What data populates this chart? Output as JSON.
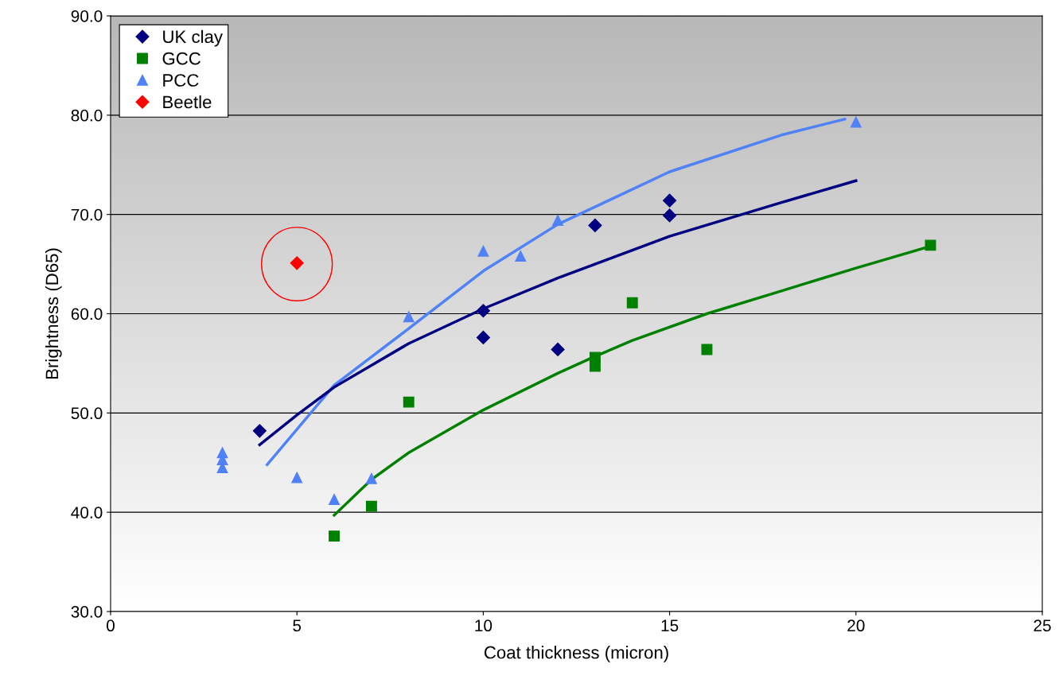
{
  "chart_data": {
    "type": "scatter",
    "xlabel": "Coat thickness (micron)",
    "ylabel": "Brightness (D65)",
    "xlim": [
      0,
      25
    ],
    "xticks": [
      0,
      5,
      10,
      15,
      20,
      25
    ],
    "ylim": [
      30,
      90
    ],
    "yticks": [
      {
        "value": 30,
        "label": "30.0"
      },
      {
        "value": 40,
        "label": "40.0"
      },
      {
        "value": 50,
        "label": "50.0"
      },
      {
        "value": 60,
        "label": "60.0"
      },
      {
        "value": 70,
        "label": "70.0"
      },
      {
        "value": 80,
        "label": "80.0"
      },
      {
        "value": 90,
        "label": "90.0"
      }
    ],
    "grid": "y",
    "legend": "top left",
    "series": [
      {
        "type": "line",
        "color": "#4f81f7",
        "marker": "none",
        "x": [
          4.2,
          6,
          8,
          10,
          12,
          15,
          18,
          19.7
        ],
        "values": [
          44.8,
          52.8,
          58.5,
          64.3,
          69.0,
          74.3,
          78.0,
          79.6
        ]
      },
      {
        "type": "line",
        "color": "#000080",
        "marker": "none",
        "x": [
          4,
          5,
          6,
          8,
          10,
          12,
          15,
          18,
          20
        ],
        "values": [
          46.8,
          49.8,
          52.6,
          57.0,
          60.5,
          63.6,
          67.8,
          71.2,
          73.4
        ]
      },
      {
        "type": "line",
        "color": "#008000",
        "marker": "none",
        "x": [
          6,
          7,
          8,
          10,
          12,
          13,
          14,
          16,
          18,
          20,
          22
        ],
        "values": [
          39.7,
          43.3,
          46.0,
          50.3,
          54.0,
          55.7,
          57.3,
          60.0,
          62.3,
          64.6,
          66.8
        ]
      },
      {
        "name": "UK clay",
        "color": "#000080",
        "marker": "diamond",
        "x": [
          4,
          10,
          10,
          12,
          13,
          15,
          15
        ],
        "values": [
          48.2,
          60.3,
          57.6,
          56.4,
          68.9,
          71.4,
          69.9
        ]
      },
      {
        "name": "GCC",
        "color": "#008000",
        "marker": "square",
        "x": [
          6,
          7,
          8,
          13,
          13,
          14,
          16,
          22
        ],
        "values": [
          37.6,
          40.6,
          51.1,
          55.6,
          54.7,
          61.1,
          56.4,
          66.9
        ]
      },
      {
        "name": "PCC",
        "color": "#4f81f7",
        "marker": "triangle",
        "x": [
          3,
          3,
          3,
          5,
          6,
          7,
          8,
          10,
          11,
          12,
          20
        ],
        "values": [
          46.0,
          45.3,
          44.5,
          43.5,
          41.3,
          43.4,
          59.7,
          66.3,
          65.8,
          69.4,
          79.3
        ]
      },
      {
        "name": "Beetle",
        "color": "#ff0000",
        "marker": "diamond",
        "x": [
          5
        ],
        "values": [
          65.1
        ]
      }
    ]
  }
}
